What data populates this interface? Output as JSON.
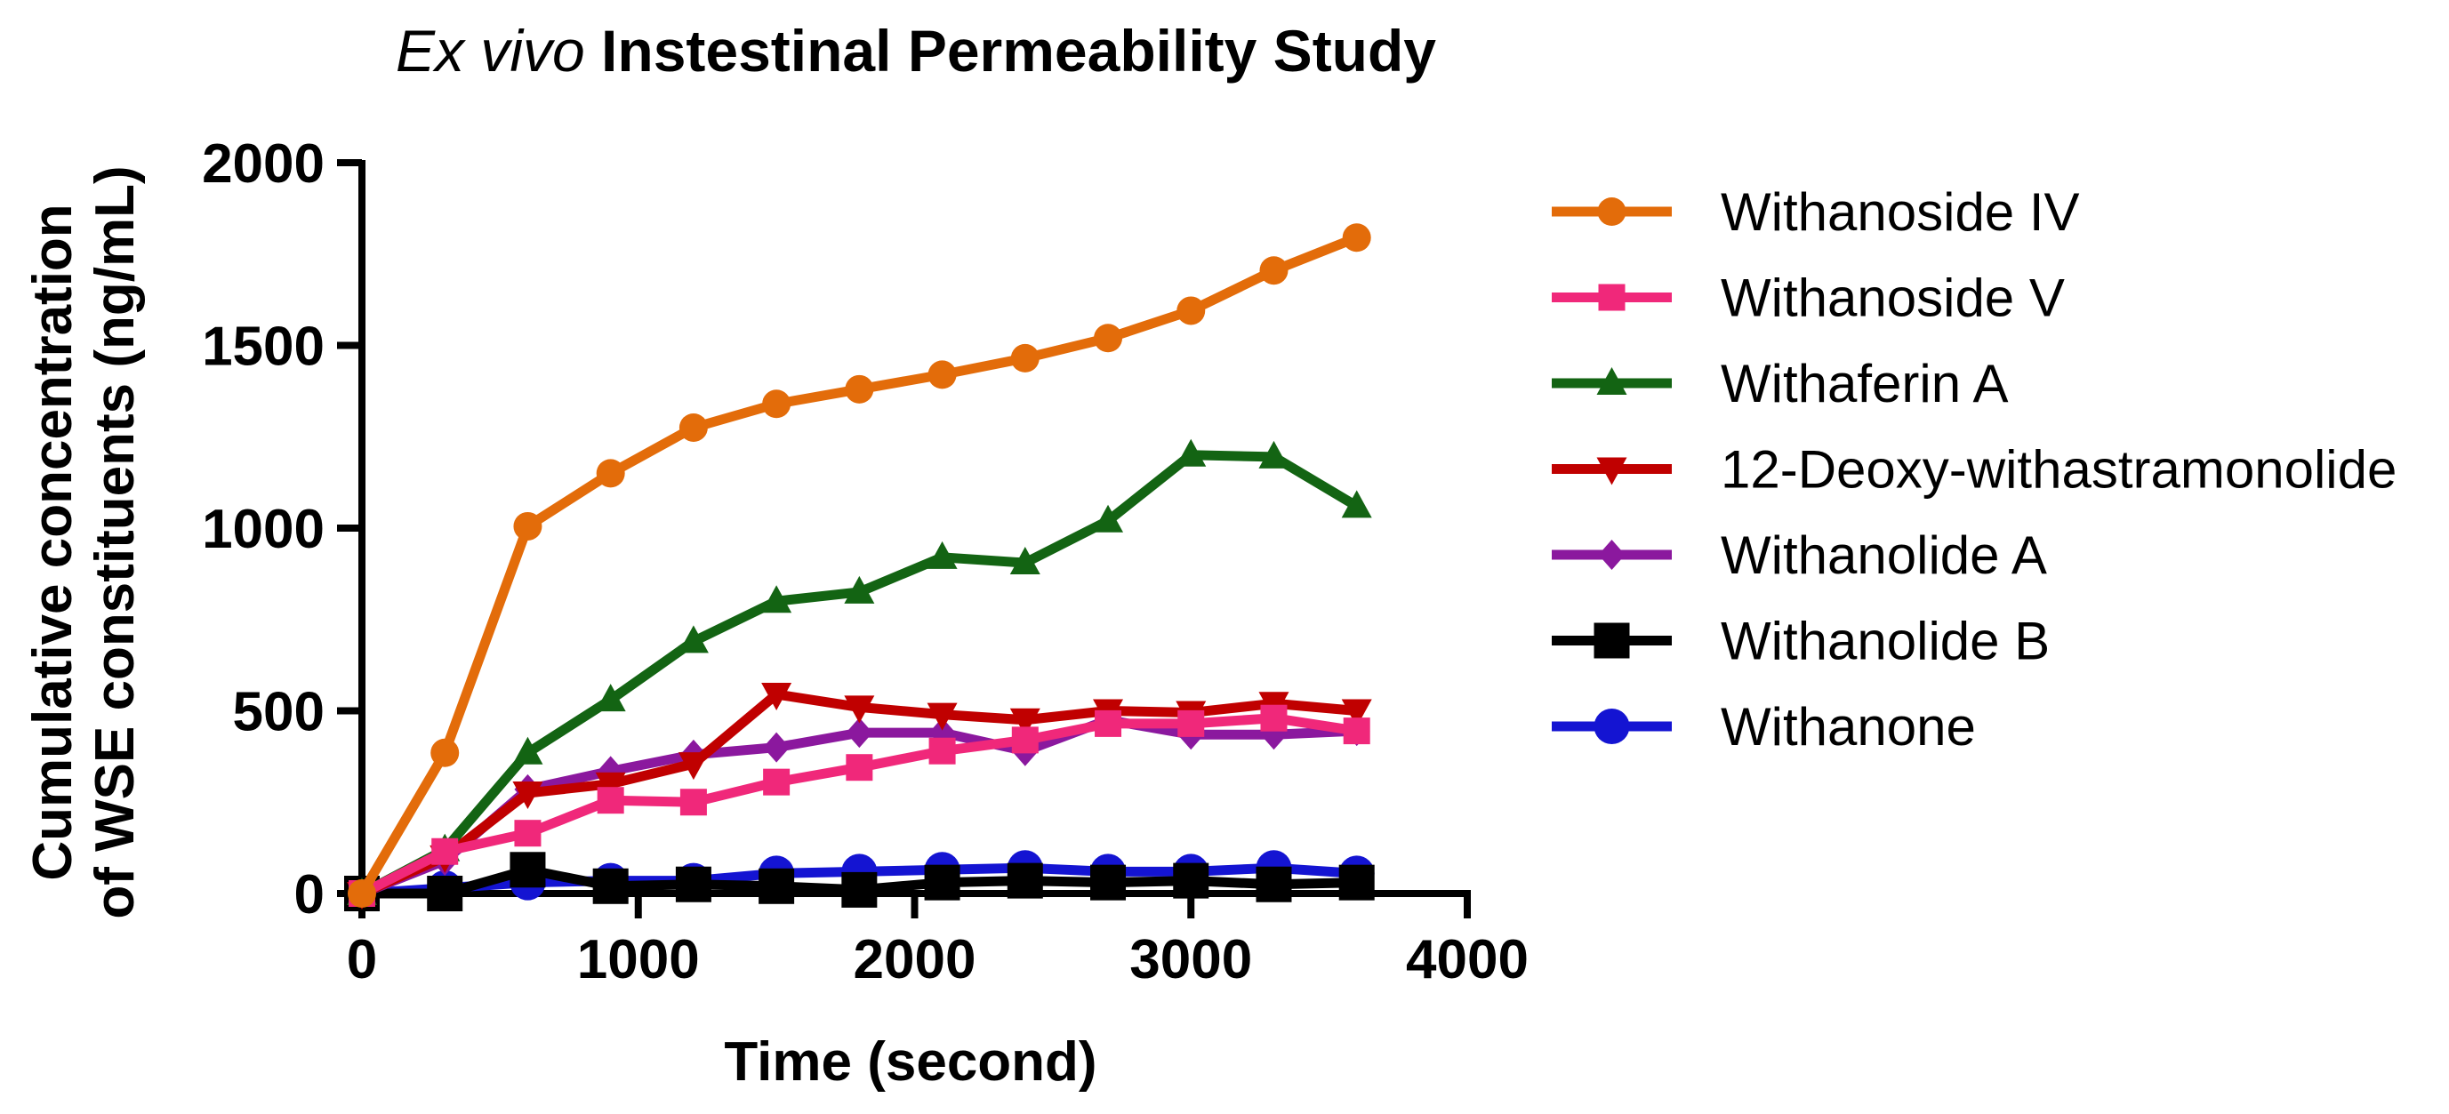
{
  "chart_data": {
    "type": "line",
    "title_prefix": "Ex vivo",
    "title_rest": " Instestinal Permeability Study",
    "xlabel": "Time (second)",
    "ylabel_line1": "Cumulative concentration",
    "ylabel_line2": "of WSE constituents (ng/mL)",
    "xlim": [
      0,
      4000
    ],
    "ylim": [
      0,
      2000
    ],
    "xticks": [
      0,
      1000,
      2000,
      3000,
      4000
    ],
    "yticks": [
      0,
      500,
      1000,
      1500,
      2000
    ],
    "x": [
      0,
      300,
      600,
      900,
      1200,
      1500,
      1800,
      2100,
      2400,
      2700,
      3000,
      3300,
      3600
    ],
    "legend_position": "right",
    "series": [
      {
        "name": "Withanoside IV",
        "color": "#E36C0A",
        "marker": "circle",
        "values": [
          0,
          385,
          1005,
          1150,
          1275,
          1340,
          1380,
          1420,
          1465,
          1520,
          1595,
          1705,
          1795
        ]
      },
      {
        "name": "Withanoside V",
        "color": "#F0287A",
        "marker": "square",
        "values": [
          0,
          115,
          165,
          255,
          250,
          305,
          345,
          390,
          420,
          465,
          465,
          480,
          445
        ]
      },
      {
        "name": "Withaferin A",
        "color": "#136413",
        "marker": "triangle-up",
        "values": [
          0,
          120,
          385,
          530,
          690,
          800,
          825,
          920,
          905,
          1020,
          1200,
          1195,
          1060
        ]
      },
      {
        "name": "12-Deoxy-withastramonolide",
        "color": "#C00000",
        "marker": "triangle-down",
        "values": [
          0,
          100,
          275,
          300,
          355,
          545,
          510,
          490,
          475,
          500,
          495,
          520,
          500
        ]
      },
      {
        "name": "Withanolide A",
        "color": "#8B189E",
        "marker": "diamond",
        "values": [
          0,
          90,
          285,
          335,
          380,
          400,
          440,
          440,
          390,
          475,
          435,
          435,
          445
        ]
      },
      {
        "name": "Withanolide B",
        "color": "#000000",
        "marker": "big-square",
        "values": [
          0,
          0,
          65,
          20,
          25,
          20,
          10,
          30,
          35,
          30,
          35,
          25,
          30
        ]
      },
      {
        "name": "Withanone",
        "color": "#1414D2",
        "marker": "big-circle",
        "values": [
          0,
          15,
          30,
          35,
          35,
          55,
          60,
          65,
          70,
          60,
          60,
          70,
          55
        ]
      }
    ]
  }
}
